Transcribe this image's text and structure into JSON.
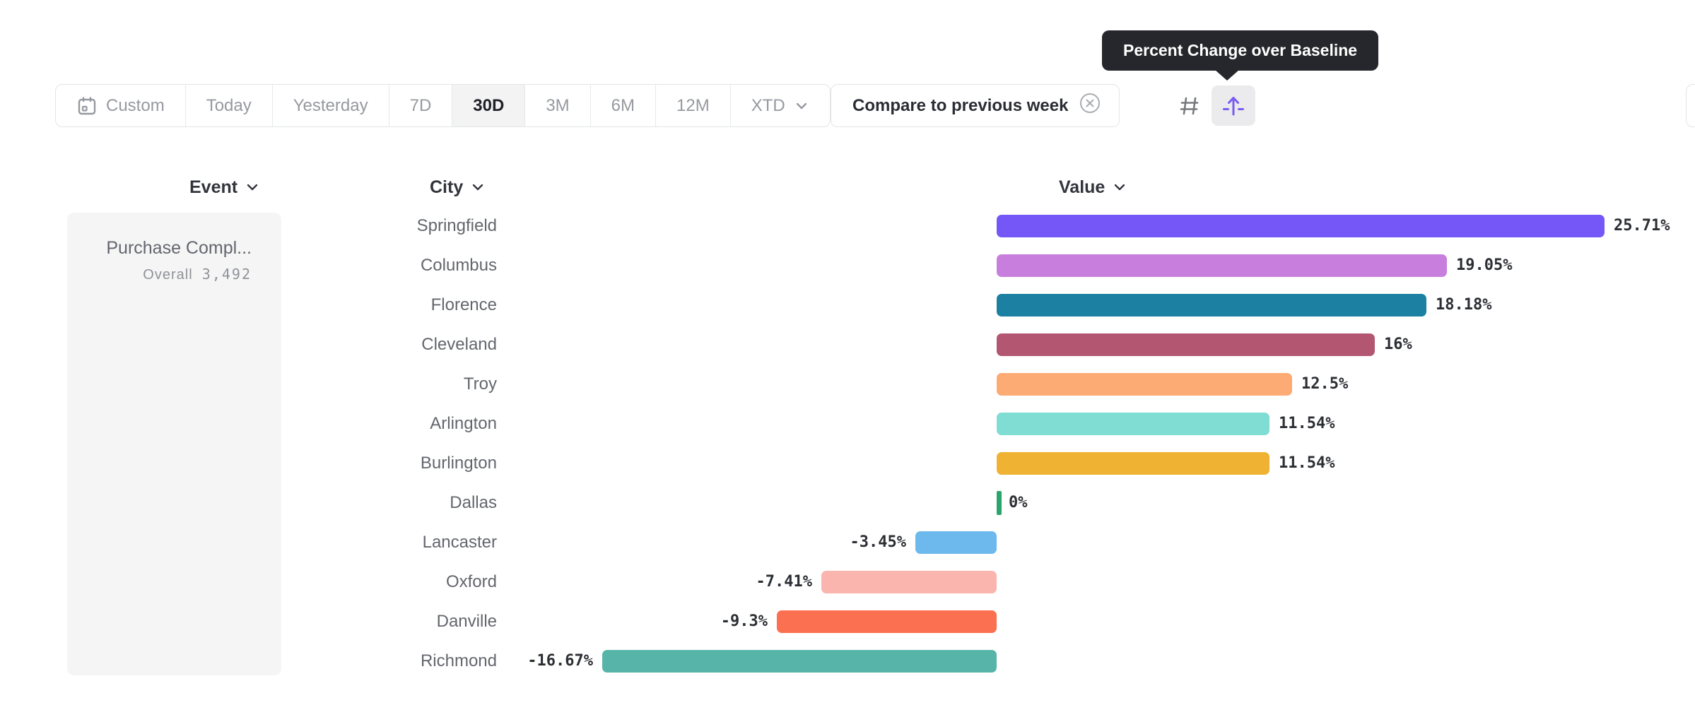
{
  "tooltip": {
    "text": "Percent Change over Baseline"
  },
  "toolbar": {
    "segments": [
      {
        "label": "Custom",
        "icon": "calendar-icon",
        "selected": false
      },
      {
        "label": "Today",
        "selected": false
      },
      {
        "label": "Yesterday",
        "selected": false
      },
      {
        "label": "7D",
        "selected": false
      },
      {
        "label": "30D",
        "selected": true
      },
      {
        "label": "3M",
        "selected": false
      },
      {
        "label": "6M",
        "selected": false
      },
      {
        "label": "12M",
        "selected": false
      },
      {
        "label": "XTD",
        "chevron": true,
        "selected": false
      }
    ],
    "compare_chip": {
      "label": "Compare to previous week",
      "icon": "remove-circle-icon"
    },
    "view_toggles": [
      {
        "name": "grid-view",
        "icon": "grid-icon",
        "selected": false
      },
      {
        "name": "percent-change-view",
        "icon": "arrow-up-baseline-icon",
        "selected": true
      }
    ]
  },
  "columns": {
    "event": "Event",
    "city": "City",
    "value": "Value"
  },
  "event_panel": {
    "event_name": "Purchase Compl...",
    "overall_label": "Overall",
    "overall_value": "3,492"
  },
  "chart_data": {
    "type": "bar",
    "orientation": "horizontal",
    "title": "Percent Change over Baseline",
    "xlabel": "Value",
    "ylabel": "City",
    "unit": "%",
    "xlim": [
      -16.67,
      25.71
    ],
    "grid": false,
    "categories": [
      "Springfield",
      "Columbus",
      "Florence",
      "Cleveland",
      "Troy",
      "Arlington",
      "Burlington",
      "Dallas",
      "Lancaster",
      "Oxford",
      "Danville",
      "Richmond"
    ],
    "values": [
      25.71,
      19.05,
      18.18,
      16,
      12.5,
      11.54,
      11.54,
      0,
      -3.45,
      -7.41,
      -9.3,
      -16.67
    ],
    "labels": [
      "25.71%",
      "19.05%",
      "18.18%",
      "16%",
      "12.5%",
      "11.54%",
      "11.54%",
      "0%",
      "-3.45%",
      "-7.41%",
      "-9.3%",
      "-16.67%"
    ],
    "colors": [
      "#7457f6",
      "#c87edd",
      "#1b80a1",
      "#b35671",
      "#fcab74",
      "#80ddd4",
      "#f0b232",
      "#2aa66b",
      "#6db9ed",
      "#fab5ae",
      "#fa7051",
      "#57b4a8"
    ]
  },
  "theme": {
    "accent_purple": "#7a5cf0",
    "tooltip_bg": "#26272c",
    "border": "#e3e4e7",
    "selected_bg": "#f3f3f4",
    "muted_text": "#96999f",
    "dark_text": "#2a2d34",
    "panel_bg": "#f5f5f6"
  }
}
